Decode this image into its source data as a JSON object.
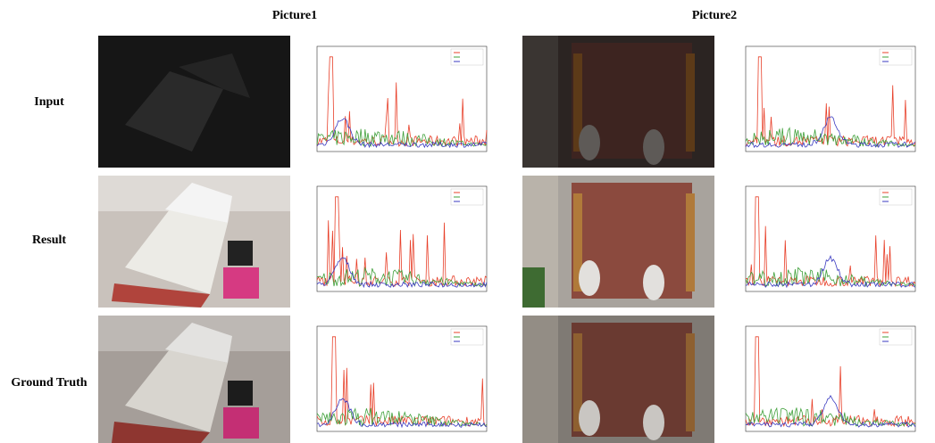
{
  "columns": [
    "Picture1",
    "Picture2"
  ],
  "rows": [
    "Input",
    "Result",
    "Ground Truth"
  ]
}
